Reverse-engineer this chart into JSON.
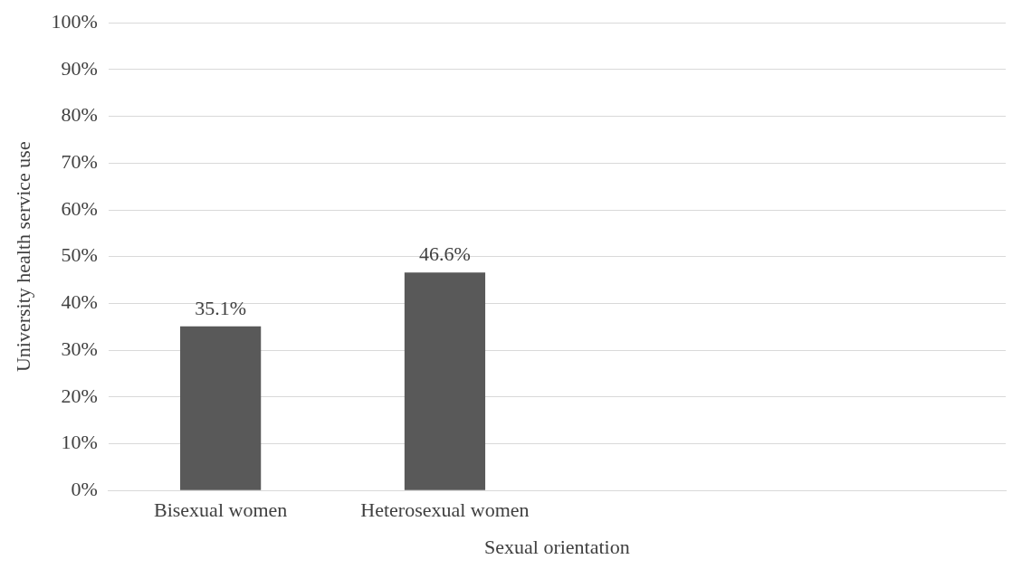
{
  "chart_data": {
    "type": "bar",
    "xlabel": "Sexual orientation",
    "ylabel": "University health service use",
    "categories": [
      "Bisexual women",
      "Heterosexual women",
      null,
      null
    ],
    "values": [
      35.1,
      46.6,
      null,
      null
    ],
    "value_labels": [
      "35.1%",
      "46.6%",
      null,
      null
    ],
    "color": "#595959",
    "ylim": [
      0,
      100
    ],
    "yticks": [
      {
        "value": 0,
        "label": "0%"
      },
      {
        "value": 10,
        "label": "10%"
      },
      {
        "value": 20,
        "label": "20%"
      },
      {
        "value": 30,
        "label": "30%"
      },
      {
        "value": 40,
        "label": "40%"
      },
      {
        "value": 50,
        "label": "50%"
      },
      {
        "value": 60,
        "label": "60%"
      },
      {
        "value": 70,
        "label": "70%"
      },
      {
        "value": 80,
        "label": "80%"
      },
      {
        "value": 90,
        "label": "90%"
      },
      {
        "value": 100,
        "label": "100%"
      }
    ],
    "grid": "y",
    "legend": false
  }
}
